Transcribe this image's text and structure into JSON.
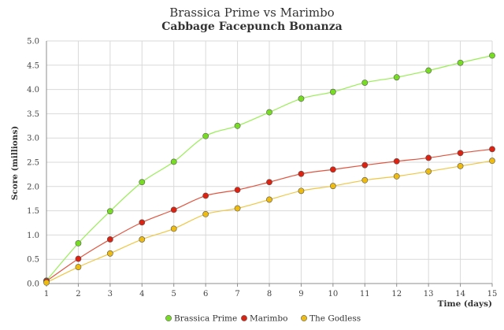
{
  "chart_data": {
    "type": "scatter",
    "title": "Brassica Prime vs Marimbo",
    "subtitle": "Cabbage Facepunch Bonanza",
    "xlabel": "Time (days)",
    "ylabel": "Score (millions)",
    "xlim": [
      1,
      15
    ],
    "ylim": [
      0,
      5
    ],
    "x_ticks": [
      1,
      2,
      3,
      4,
      5,
      6,
      7,
      8,
      9,
      10,
      11,
      12,
      13,
      14,
      15
    ],
    "y_ticks": [
      "0.0",
      "0.5",
      "1.0",
      "1.5",
      "2.0",
      "2.5",
      "3.0",
      "3.5",
      "4.0",
      "4.5",
      "5.0"
    ],
    "grid": true,
    "legend_position": "bottom",
    "series": [
      {
        "name": "Brassica Prime",
        "color": "#77dd22",
        "line_color": "#99ee55",
        "x": [
          1,
          2,
          3,
          4,
          5,
          6,
          7,
          8,
          9,
          10,
          11,
          12,
          13,
          14,
          15
        ],
        "y": [
          0.06,
          0.83,
          1.49,
          2.09,
          2.51,
          3.04,
          3.25,
          3.53,
          3.81,
          3.95,
          4.14,
          4.25,
          4.39,
          4.55,
          4.7
        ]
      },
      {
        "name": "Marimbo",
        "color": "#dd2211",
        "line_color": "#e05540",
        "x": [
          1,
          2,
          3,
          4,
          5,
          6,
          7,
          8,
          9,
          10,
          11,
          12,
          13,
          14,
          15
        ],
        "y": [
          0.05,
          0.51,
          0.91,
          1.26,
          1.52,
          1.81,
          1.93,
          2.09,
          2.26,
          2.35,
          2.44,
          2.52,
          2.59,
          2.69,
          2.77
        ]
      },
      {
        "name": "The Godless",
        "color": "#eebb11",
        "line_color": "#eec744",
        "x": [
          1,
          2,
          3,
          4,
          5,
          6,
          7,
          8,
          9,
          10,
          11,
          12,
          13,
          14,
          15
        ],
        "y": [
          0.02,
          0.34,
          0.62,
          0.91,
          1.13,
          1.43,
          1.55,
          1.73,
          1.91,
          2.01,
          2.13,
          2.21,
          2.31,
          2.42,
          2.53
        ]
      }
    ]
  }
}
